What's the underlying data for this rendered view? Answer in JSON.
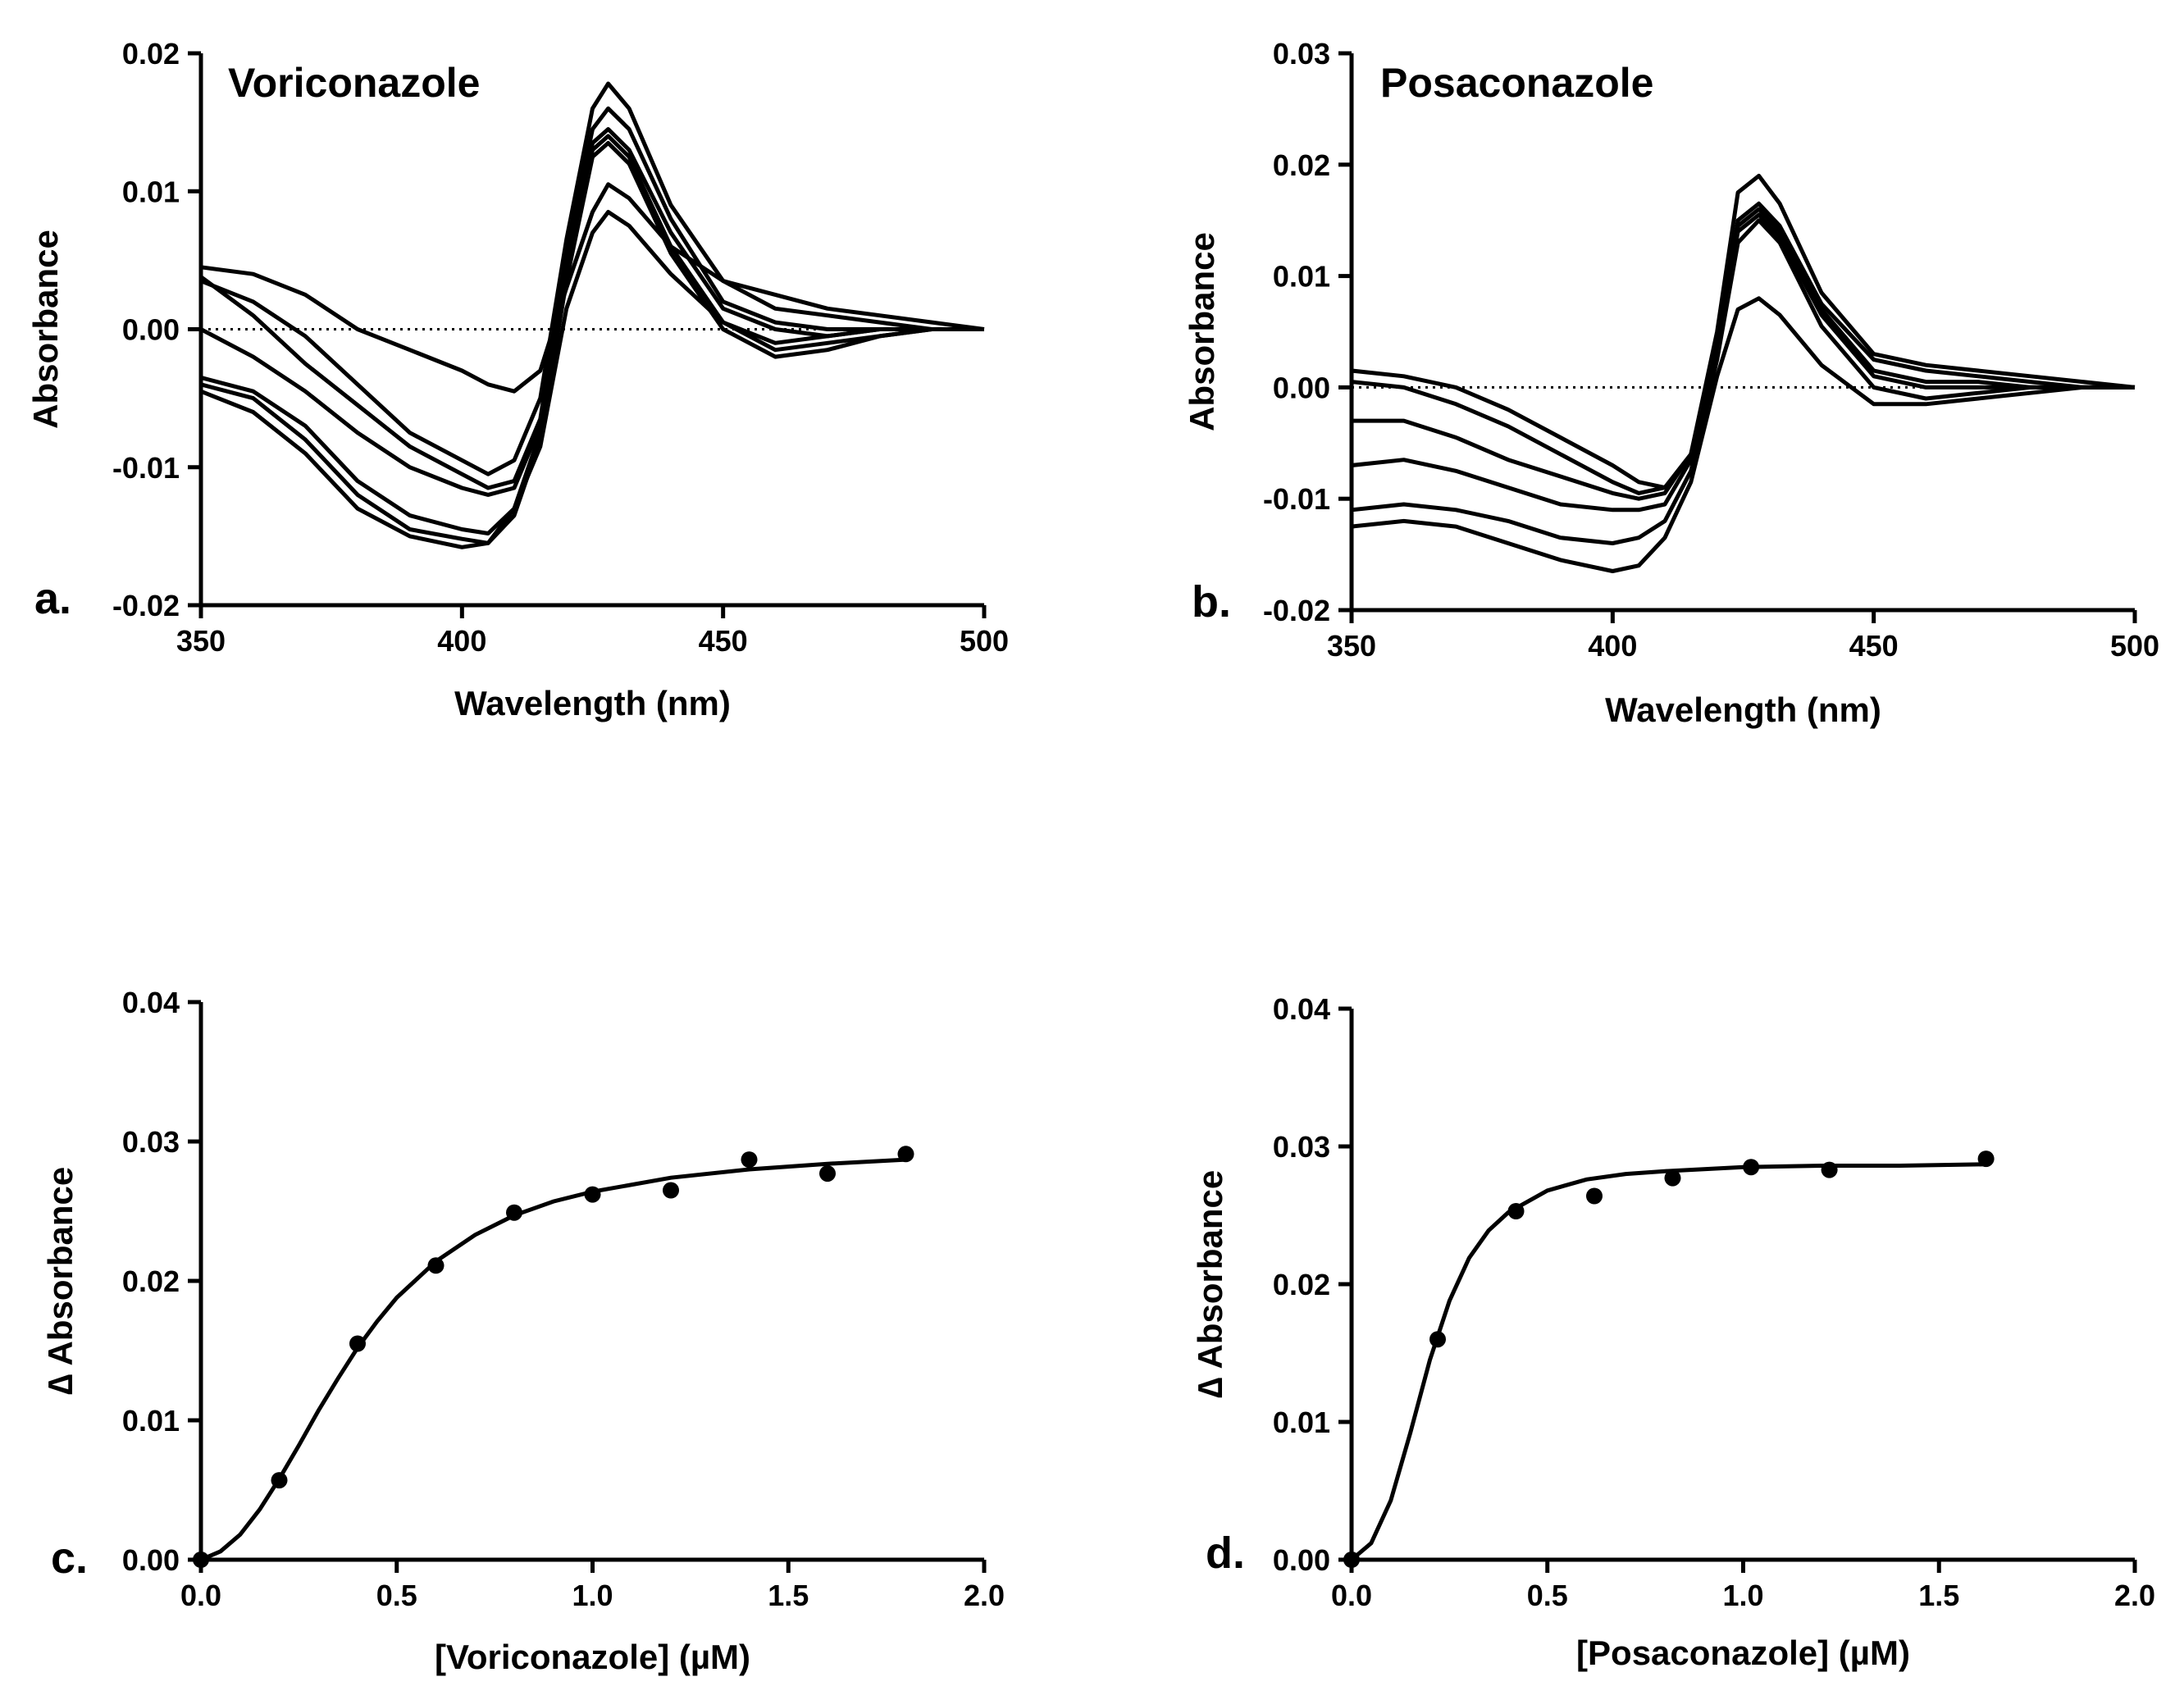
{
  "chart_data": [
    {
      "panel": "a.",
      "type": "line",
      "title": "Voriconazole",
      "xlabel": "Wavelength (nm)",
      "ylabel": "Absorbance",
      "xlim": [
        350,
        500
      ],
      "ylim": [
        -0.02,
        0.02
      ],
      "xticks": [
        350,
        400,
        450,
        500
      ],
      "xtick_labels": [
        "350",
        "400",
        "450",
        "500"
      ],
      "yticks": [
        -0.02,
        -0.01,
        0.0,
        0.01,
        0.02
      ],
      "ytick_labels": [
        "-0.02",
        "-0.01",
        "0.00",
        "0.01",
        "0.02"
      ],
      "reference_line": {
        "y": 0,
        "style": "dotted"
      },
      "x": [
        350,
        360,
        370,
        380,
        390,
        400,
        405,
        410,
        415,
        420,
        425,
        428,
        432,
        440,
        450,
        460,
        470,
        480,
        490,
        500
      ],
      "series": [
        {
          "values": [
            0.0045,
            0.004,
            0.0025,
            0.0,
            -0.0015,
            -0.003,
            -0.004,
            -0.0045,
            -0.003,
            0.003,
            0.0085,
            0.0105,
            0.0095,
            0.006,
            0.0035,
            0.0025,
            0.0015,
            0.001,
            0.0005,
            0.0
          ]
        },
        {
          "values": [
            0.0035,
            0.002,
            -0.0005,
            -0.004,
            -0.0075,
            -0.0095,
            -0.0105,
            -0.0095,
            -0.005,
            0.0065,
            0.016,
            0.0178,
            0.016,
            0.009,
            0.0035,
            0.0015,
            0.001,
            0.0005,
            0.0,
            0.0
          ]
        },
        {
          "values": [
            0.0038,
            0.001,
            -0.0025,
            -0.0055,
            -0.0085,
            -0.0105,
            -0.0115,
            -0.011,
            -0.0065,
            0.0055,
            0.0145,
            0.016,
            0.0145,
            0.008,
            0.002,
            0.0005,
            0.0,
            0.0,
            0.0,
            0.0
          ]
        },
        {
          "values": [
            0.0,
            -0.002,
            -0.0045,
            -0.0075,
            -0.01,
            -0.0115,
            -0.012,
            -0.0115,
            -0.007,
            0.005,
            0.0135,
            0.0145,
            0.013,
            0.007,
            0.0015,
            0.0,
            -0.0005,
            0.0,
            0.0,
            0.0
          ]
        },
        {
          "values": [
            -0.0035,
            -0.0045,
            -0.007,
            -0.011,
            -0.0135,
            -0.0145,
            -0.0148,
            -0.013,
            -0.0075,
            0.0045,
            0.013,
            0.014,
            0.0125,
            0.006,
            0.0005,
            -0.0015,
            -0.001,
            -0.0005,
            0.0,
            0.0
          ]
        },
        {
          "values": [
            -0.004,
            -0.005,
            -0.008,
            -0.012,
            -0.0145,
            -0.0152,
            -0.0155,
            -0.0135,
            -0.008,
            0.0035,
            0.0125,
            0.0135,
            0.012,
            0.0055,
            0.0,
            -0.002,
            -0.0015,
            -0.0005,
            0.0,
            0.0
          ]
        },
        {
          "values": [
            -0.0045,
            -0.006,
            -0.009,
            -0.013,
            -0.015,
            -0.0158,
            -0.0155,
            -0.013,
            -0.0085,
            0.0015,
            0.007,
            0.0085,
            0.0075,
            0.004,
            0.0005,
            -0.001,
            -0.0005,
            0.0,
            0.0,
            0.0
          ]
        }
      ]
    },
    {
      "panel": "b.",
      "type": "line",
      "title": "Posaconazole",
      "xlabel": "Wavelength (nm)",
      "ylabel": "Absorbance",
      "xlim": [
        350,
        500
      ],
      "ylim": [
        -0.02,
        0.03
      ],
      "xticks": [
        350,
        400,
        450,
        500
      ],
      "xtick_labels": [
        "350",
        "400",
        "450",
        "500"
      ],
      "yticks": [
        -0.02,
        -0.01,
        0.0,
        0.01,
        0.02,
        0.03
      ],
      "ytick_labels": [
        "-0.02",
        "-0.01",
        "0.00",
        "0.01",
        "0.02",
        "0.03"
      ],
      "reference_line": {
        "y": 0,
        "style": "dotted"
      },
      "x": [
        350,
        360,
        370,
        380,
        390,
        400,
        405,
        410,
        415,
        420,
        424,
        428,
        432,
        440,
        450,
        460,
        470,
        480,
        490,
        500
      ],
      "series": [
        {
          "values": [
            0.0015,
            0.001,
            0.0,
            -0.002,
            -0.0045,
            -0.007,
            -0.0085,
            -0.009,
            -0.006,
            0.005,
            0.0175,
            0.019,
            0.0165,
            0.0085,
            0.003,
            0.002,
            0.0015,
            0.001,
            0.0005,
            0.0
          ]
        },
        {
          "values": [
            0.0005,
            0.0,
            -0.0015,
            -0.0035,
            -0.006,
            -0.0085,
            -0.0095,
            -0.009,
            -0.006,
            0.004,
            0.015,
            0.0165,
            0.0145,
            0.0075,
            0.0025,
            0.0015,
            0.001,
            0.0005,
            0.0,
            0.0
          ]
        },
        {
          "values": [
            -0.003,
            -0.003,
            -0.0045,
            -0.0065,
            -0.008,
            -0.0095,
            -0.01,
            -0.0095,
            -0.006,
            0.004,
            0.0145,
            0.016,
            0.014,
            0.007,
            0.0015,
            0.0005,
            0.0005,
            0.0,
            0.0,
            0.0
          ]
        },
        {
          "values": [
            -0.007,
            -0.0065,
            -0.0075,
            -0.009,
            -0.0105,
            -0.011,
            -0.011,
            -0.0105,
            -0.0065,
            0.0035,
            0.014,
            0.0155,
            0.0135,
            0.0065,
            0.001,
            0.0,
            0.0,
            0.0,
            0.0,
            0.0
          ]
        },
        {
          "values": [
            -0.011,
            -0.0105,
            -0.011,
            -0.012,
            -0.0135,
            -0.014,
            -0.0135,
            -0.012,
            -0.0075,
            0.0025,
            0.013,
            0.015,
            0.013,
            0.0055,
            0.0,
            -0.001,
            -0.0005,
            0.0,
            0.0,
            0.0
          ]
        },
        {
          "values": [
            -0.0125,
            -0.012,
            -0.0125,
            -0.014,
            -0.0155,
            -0.0165,
            -0.016,
            -0.0135,
            -0.0085,
            0.001,
            0.007,
            0.008,
            0.0065,
            0.002,
            -0.0015,
            -0.0015,
            -0.001,
            -0.0005,
            0.0,
            0.0
          ]
        }
      ]
    },
    {
      "panel": "c.",
      "type": "scatter",
      "title": "",
      "xlabel": "[Voriconazole] (µM)",
      "ylabel": "∆ Absorbance",
      "xlim": [
        0,
        2.0
      ],
      "ylim": [
        0,
        0.04
      ],
      "xticks": [
        0,
        0.5,
        1.0,
        1.5,
        2.0
      ],
      "xtick_labels": [
        "0.0",
        "0.5",
        "1.0",
        "1.5",
        "2.0"
      ],
      "yticks": [
        0,
        0.01,
        0.02,
        0.03,
        0.04
      ],
      "ytick_labels": [
        "0.00",
        "0.01",
        "0.02",
        "0.03",
        "0.04"
      ],
      "x": [
        0.0,
        0.2,
        0.4,
        0.6,
        0.8,
        1.0,
        1.2,
        1.4,
        1.6,
        1.8
      ],
      "values": [
        0.0,
        0.0057,
        0.0155,
        0.0211,
        0.0249,
        0.0262,
        0.0265,
        0.0287,
        0.0277,
        0.0291
      ],
      "fit": {
        "x": [
          0.0,
          0.05,
          0.1,
          0.15,
          0.2,
          0.25,
          0.3,
          0.35,
          0.4,
          0.45,
          0.5,
          0.6,
          0.7,
          0.8,
          0.9,
          1.0,
          1.2,
          1.4,
          1.6,
          1.8
        ],
        "values": [
          0.0,
          0.0006,
          0.0018,
          0.0036,
          0.0058,
          0.0082,
          0.0107,
          0.013,
          0.0152,
          0.0171,
          0.0188,
          0.0214,
          0.0233,
          0.0247,
          0.0257,
          0.0264,
          0.0274,
          0.028,
          0.0284,
          0.0287
        ]
      }
    },
    {
      "panel": "d.",
      "type": "scatter",
      "title": "",
      "xlabel": "[Posaconazole] (µM)",
      "ylabel": "∆ Absorbance",
      "xlim": [
        0,
        2.0
      ],
      "ylim": [
        0,
        0.04
      ],
      "xticks": [
        0,
        0.5,
        1.0,
        1.5,
        2.0
      ],
      "xtick_labels": [
        "0.0",
        "0.5",
        "1.0",
        "1.5",
        "2.0"
      ],
      "yticks": [
        0,
        0.01,
        0.02,
        0.03,
        0.04
      ],
      "ytick_labels": [
        "0.00",
        "0.01",
        "0.02",
        "0.03",
        "0.04"
      ],
      "x": [
        0.0,
        0.22,
        0.42,
        0.62,
        0.82,
        1.02,
        1.22,
        1.62
      ],
      "values": [
        0.0,
        0.016,
        0.0253,
        0.0264,
        0.0277,
        0.0285,
        0.0283,
        0.0291
      ],
      "fit": {
        "x": [
          0.0,
          0.05,
          0.1,
          0.15,
          0.2,
          0.25,
          0.3,
          0.35,
          0.4,
          0.5,
          0.6,
          0.7,
          0.8,
          1.0,
          1.2,
          1.4,
          1.62
        ],
        "values": [
          0.0,
          0.0012,
          0.0043,
          0.0092,
          0.0145,
          0.0188,
          0.0219,
          0.0239,
          0.0252,
          0.0268,
          0.0276,
          0.028,
          0.0282,
          0.0285,
          0.0286,
          0.0286,
          0.0287
        ]
      }
    }
  ]
}
